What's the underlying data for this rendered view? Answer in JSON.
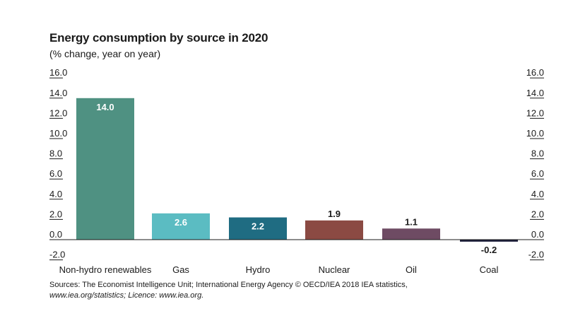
{
  "chart_data": {
    "type": "bar",
    "title": "Energy consumption by source in 2020",
    "subtitle": "(% change, year on year)",
    "categories": [
      "Non-hydro renewables",
      "Gas",
      "Hydro",
      "Nuclear",
      "Oil",
      "Coal"
    ],
    "values": [
      14.0,
      2.6,
      2.2,
      1.9,
      1.1,
      -0.2
    ],
    "data_labels": [
      "14.0",
      "2.6",
      "2.2",
      "1.9",
      "1.1",
      "-0.2"
    ],
    "colors": [
      "#4f9182",
      "#5bbcc2",
      "#1f6c82",
      "#8b4a43",
      "#6e4b63",
      "#1c1f3b"
    ],
    "ylim": [
      -2,
      16
    ],
    "yticks": [
      "16.0",
      "14.0",
      "12.0",
      "10.0",
      "8.0",
      "6.0",
      "4.0",
      "2.0",
      "0.0",
      "-2.0"
    ],
    "ytick_values": [
      16,
      14,
      12,
      10,
      8,
      6,
      4,
      2,
      0,
      -2
    ],
    "axes": "left and right",
    "grid": false,
    "xlabel": "",
    "ylabel": ""
  },
  "source": {
    "line1": "Sources: The Economist Intelligence Unit; International Energy Agency © OECD/IEA 2018 IEA statistics,",
    "line2": "www.iea.org/statistics; Licence: www.iea.org."
  }
}
